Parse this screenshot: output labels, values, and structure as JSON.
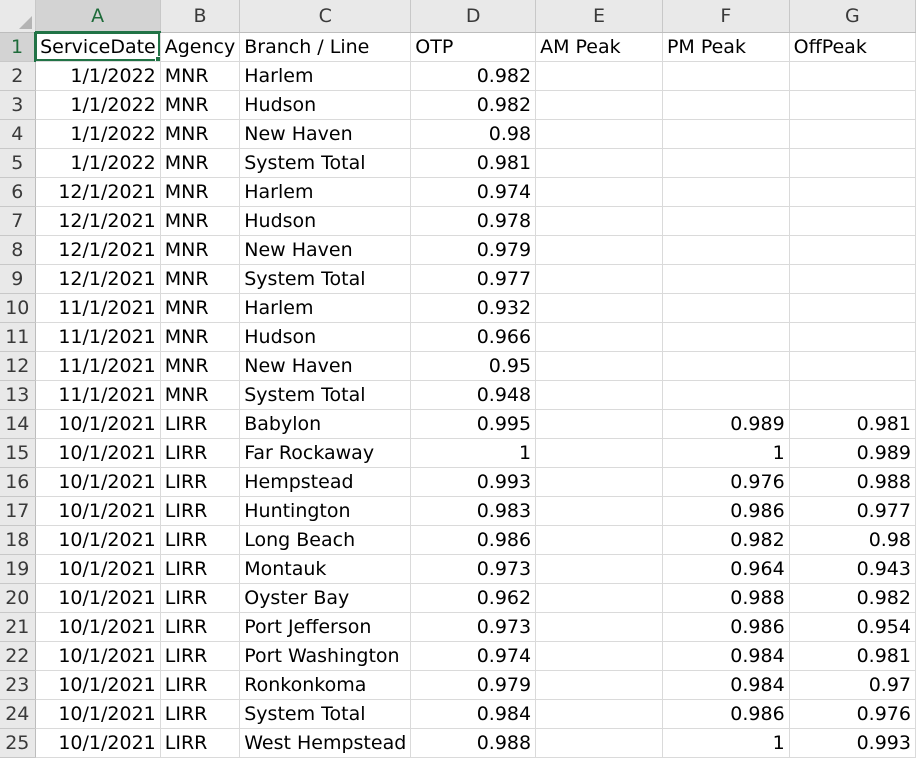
{
  "columns": [
    "A",
    "B",
    "C",
    "D",
    "E",
    "F",
    "G"
  ],
  "active_cell": "A1",
  "rows": [
    {
      "n": "1",
      "cells": [
        "ServiceDate",
        "Agency",
        "Branch / Line",
        "OTP",
        "AM Peak",
        "PM Peak",
        "OffPeak"
      ]
    },
    {
      "n": "2",
      "cells": [
        "1/1/2022",
        "MNR",
        "Harlem",
        "0.982",
        "",
        "",
        ""
      ]
    },
    {
      "n": "3",
      "cells": [
        "1/1/2022",
        "MNR",
        "Hudson",
        "0.982",
        "",
        "",
        ""
      ]
    },
    {
      "n": "4",
      "cells": [
        "1/1/2022",
        "MNR",
        "New Haven",
        "0.98",
        "",
        "",
        ""
      ]
    },
    {
      "n": "5",
      "cells": [
        "1/1/2022",
        "MNR",
        "System Total",
        "0.981",
        "",
        "",
        ""
      ]
    },
    {
      "n": "6",
      "cells": [
        "12/1/2021",
        "MNR",
        "Harlem",
        "0.974",
        "",
        "",
        ""
      ]
    },
    {
      "n": "7",
      "cells": [
        "12/1/2021",
        "MNR",
        "Hudson",
        "0.978",
        "",
        "",
        ""
      ]
    },
    {
      "n": "8",
      "cells": [
        "12/1/2021",
        "MNR",
        "New Haven",
        "0.979",
        "",
        "",
        ""
      ]
    },
    {
      "n": "9",
      "cells": [
        "12/1/2021",
        "MNR",
        "System Total",
        "0.977",
        "",
        "",
        ""
      ]
    },
    {
      "n": "10",
      "cells": [
        "11/1/2021",
        "MNR",
        "Harlem",
        "0.932",
        "",
        "",
        ""
      ]
    },
    {
      "n": "11",
      "cells": [
        "11/1/2021",
        "MNR",
        "Hudson",
        "0.966",
        "",
        "",
        ""
      ]
    },
    {
      "n": "12",
      "cells": [
        "11/1/2021",
        "MNR",
        "New Haven",
        "0.95",
        "",
        "",
        ""
      ]
    },
    {
      "n": "13",
      "cells": [
        "11/1/2021",
        "MNR",
        "System Total",
        "0.948",
        "",
        "",
        ""
      ]
    },
    {
      "n": "14",
      "cells": [
        "10/1/2021",
        "LIRR",
        "Babylon",
        "0.995",
        "",
        "0.989",
        "0.981"
      ]
    },
    {
      "n": "15",
      "cells": [
        "10/1/2021",
        "LIRR",
        "Far Rockaway",
        "1",
        "",
        "1",
        "0.989"
      ]
    },
    {
      "n": "16",
      "cells": [
        "10/1/2021",
        "LIRR",
        "Hempstead",
        "0.993",
        "",
        "0.976",
        "0.988"
      ]
    },
    {
      "n": "17",
      "cells": [
        "10/1/2021",
        "LIRR",
        "Huntington",
        "0.983",
        "",
        "0.986",
        "0.977"
      ]
    },
    {
      "n": "18",
      "cells": [
        "10/1/2021",
        "LIRR",
        "Long Beach",
        "0.986",
        "",
        "0.982",
        "0.98"
      ]
    },
    {
      "n": "19",
      "cells": [
        "10/1/2021",
        "LIRR",
        "Montauk",
        "0.973",
        "",
        "0.964",
        "0.943"
      ]
    },
    {
      "n": "20",
      "cells": [
        "10/1/2021",
        "LIRR",
        "Oyster Bay",
        "0.962",
        "",
        "0.988",
        "0.982"
      ]
    },
    {
      "n": "21",
      "cells": [
        "10/1/2021",
        "LIRR",
        "Port Jefferson",
        "0.973",
        "",
        "0.986",
        "0.954"
      ]
    },
    {
      "n": "22",
      "cells": [
        "10/1/2021",
        "LIRR",
        "Port Washington",
        "0.974",
        "",
        "0.984",
        "0.981"
      ]
    },
    {
      "n": "23",
      "cells": [
        "10/1/2021",
        "LIRR",
        "Ronkonkoma",
        "0.979",
        "",
        "0.984",
        "0.97"
      ]
    },
    {
      "n": "24",
      "cells": [
        "10/1/2021",
        "LIRR",
        "System Total",
        "0.984",
        "",
        "0.986",
        "0.976"
      ]
    },
    {
      "n": "25",
      "cells": [
        "10/1/2021",
        "LIRR",
        "West Hempstead",
        "0.988",
        "",
        "1",
        "0.993"
      ]
    }
  ]
}
